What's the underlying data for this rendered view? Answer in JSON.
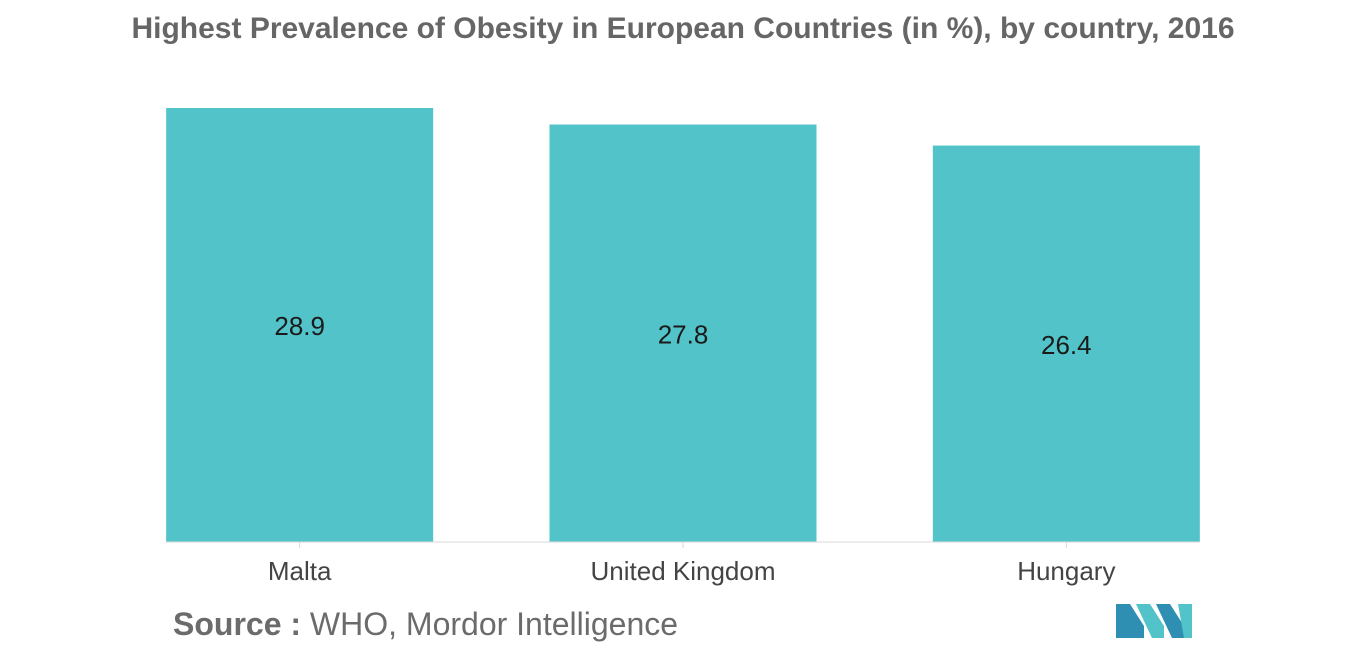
{
  "colors": {
    "bar": "#52c3c9",
    "axis": "#d9d9d9",
    "text": "#1a1a1a",
    "muted": "#666666"
  },
  "source": {
    "label": "Source :",
    "text": "WHO, Mordor Intelligence"
  },
  "logo": {
    "icon": "mordor-intelligence-logo-icon"
  },
  "chart_data": {
    "type": "bar",
    "title": "Highest Prevalence of Obesity in European Countries (in %), by country, 2016",
    "categories": [
      "Malta",
      "United Kingdom",
      "Hungary"
    ],
    "values": [
      28.9,
      27.8,
      26.4
    ],
    "xlabel": "",
    "ylabel": "",
    "ylim": [
      0,
      28.9
    ],
    "grid": false,
    "legend": "none",
    "data_labels": true
  }
}
